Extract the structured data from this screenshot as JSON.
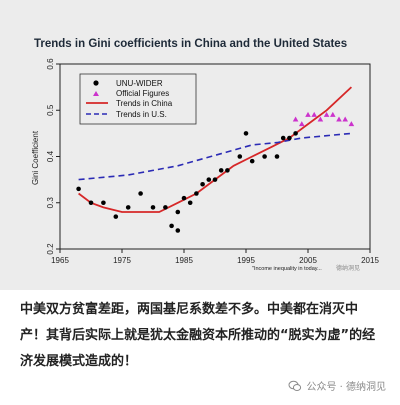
{
  "chart_data": {
    "type": "line",
    "title": "Trends in Gini coefficients in China and the United States",
    "xlabel": "",
    "ylabel": "Gini Coefficient",
    "xlim": [
      1965,
      2015
    ],
    "ylim": [
      0.2,
      0.6
    ],
    "x_ticks": [
      "1965",
      "1975",
      "1985",
      "1995",
      "2005",
      "2015"
    ],
    "y_ticks": [
      "0.2",
      "0.3",
      "0.4",
      "0.5",
      "0.6"
    ],
    "legend_position": "top-left",
    "series": [
      {
        "name": "UNU-WIDER",
        "kind": "scatter",
        "color": "#000000",
        "marker": "circle",
        "points": [
          [
            1968,
            0.33
          ],
          [
            1970,
            0.3
          ],
          [
            1972,
            0.3
          ],
          [
            1974,
            0.27
          ],
          [
            1976,
            0.29
          ],
          [
            1978,
            0.32
          ],
          [
            1980,
            0.29
          ],
          [
            1982,
            0.29
          ],
          [
            1983,
            0.25
          ],
          [
            1984,
            0.24
          ],
          [
            1984,
            0.28
          ],
          [
            1985,
            0.31
          ],
          [
            1986,
            0.3
          ],
          [
            1987,
            0.32
          ],
          [
            1988,
            0.34
          ],
          [
            1989,
            0.35
          ],
          [
            1990,
            0.35
          ],
          [
            1991,
            0.37
          ],
          [
            1992,
            0.37
          ],
          [
            1994,
            0.4
          ],
          [
            1995,
            0.45
          ],
          [
            1996,
            0.39
          ],
          [
            1998,
            0.4
          ],
          [
            2000,
            0.4
          ],
          [
            2001,
            0.44
          ],
          [
            2002,
            0.44
          ],
          [
            2003,
            0.45
          ]
        ]
      },
      {
        "name": "Official Figures",
        "kind": "scatter",
        "color": "#cc33cc",
        "marker": "triangle",
        "points": [
          [
            2003,
            0.48
          ],
          [
            2004,
            0.47
          ],
          [
            2005,
            0.49
          ],
          [
            2006,
            0.49
          ],
          [
            2007,
            0.48
          ],
          [
            2008,
            0.49
          ],
          [
            2009,
            0.49
          ],
          [
            2010,
            0.48
          ],
          [
            2011,
            0.48
          ],
          [
            2012,
            0.47
          ]
        ]
      },
      {
        "name": "Trends in China",
        "kind": "line",
        "color": "#d62728",
        "line_style": "solid",
        "points": [
          [
            1968,
            0.32
          ],
          [
            1970,
            0.3
          ],
          [
            1972,
            0.29
          ],
          [
            1975,
            0.28
          ],
          [
            1978,
            0.28
          ],
          [
            1981,
            0.28
          ],
          [
            1984,
            0.3
          ],
          [
            1987,
            0.32
          ],
          [
            1990,
            0.35
          ],
          [
            1993,
            0.38
          ],
          [
            1996,
            0.4
          ],
          [
            1999,
            0.42
          ],
          [
            2002,
            0.44
          ],
          [
            2005,
            0.47
          ],
          [
            2008,
            0.5
          ],
          [
            2012,
            0.55
          ]
        ]
      },
      {
        "name": "Trends in U.S.",
        "kind": "line",
        "color": "#2b2bb5",
        "line_style": "dashed",
        "points": [
          [
            1968,
            0.35
          ],
          [
            1972,
            0.355
          ],
          [
            1976,
            0.36
          ],
          [
            1980,
            0.37
          ],
          [
            1984,
            0.38
          ],
          [
            1988,
            0.395
          ],
          [
            1992,
            0.41
          ],
          [
            1996,
            0.425
          ],
          [
            2000,
            0.43
          ],
          [
            2004,
            0.44
          ],
          [
            2008,
            0.445
          ],
          [
            2012,
            0.45
          ]
        ]
      }
    ],
    "annotation": "\"Income inequality in today..."
  },
  "watermark_small": "德纳洞见",
  "caption": "中美双方贫富差距，两国基尼系数差不多。中美都在消灭中产！其背后实际上就是犹太金融资本所推动的“脱实为虚”的经济发展模式造成的！",
  "account_watermark": "公众号 · 德纳洞见",
  "colors": {
    "plot_background": "#ececec",
    "title_color": "#1e2a38"
  }
}
